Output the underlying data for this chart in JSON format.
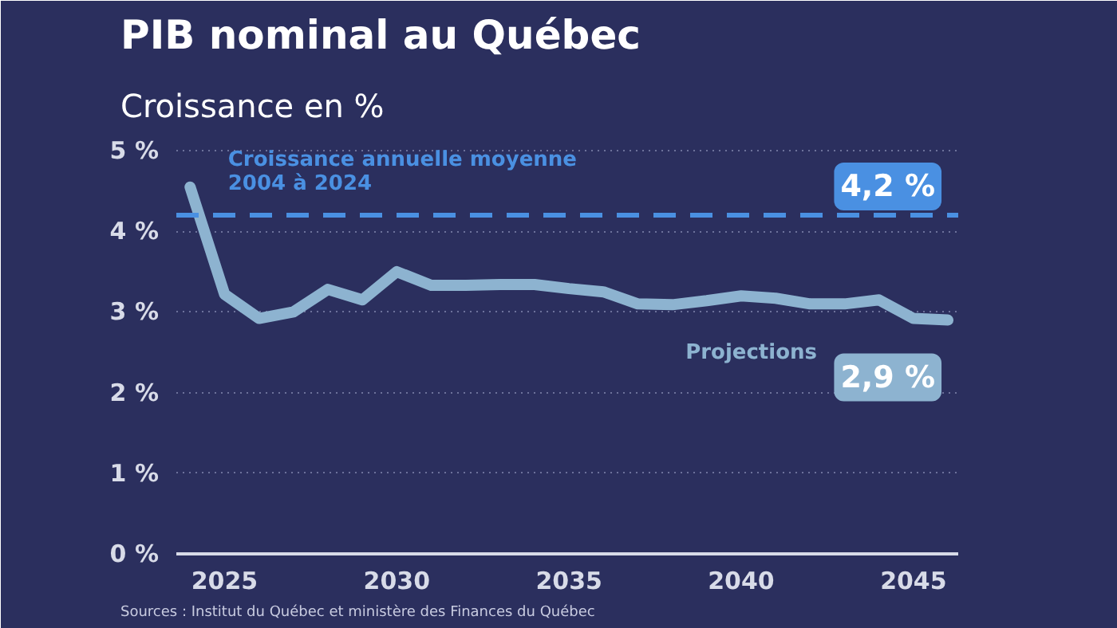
{
  "chart_data": {
    "type": "line",
    "title": "PIB nominal au Québec",
    "subtitle": "Croissance en %",
    "x": [
      2024,
      2025,
      2026,
      2027,
      2028,
      2029,
      2030,
      2031,
      2032,
      2033,
      2034,
      2035,
      2036,
      2037,
      2038,
      2039,
      2040,
      2041,
      2042,
      2043,
      2044,
      2045,
      2046
    ],
    "series": [
      {
        "name": "Projections",
        "color": "#8db3d0",
        "values": [
          4.55,
          3.22,
          2.92,
          3.0,
          3.28,
          3.15,
          3.5,
          3.33,
          3.33,
          3.34,
          3.34,
          3.29,
          3.25,
          3.1,
          3.09,
          3.14,
          3.2,
          3.17,
          3.1,
          3.1,
          3.15,
          2.92,
          2.9
        ]
      }
    ],
    "xlim": [
      2023.6,
      2046.3
    ],
    "ylim": [
      0,
      5.1
    ],
    "xticks": [
      2025,
      2030,
      2035,
      2040,
      2045
    ],
    "yticks": [
      {
        "value": 0,
        "label": "0 %"
      },
      {
        "value": 1,
        "label": "1 %"
      },
      {
        "value": 2,
        "label": "2 %"
      },
      {
        "value": 3,
        "label": "3 %"
      },
      {
        "value": 4,
        "label": "4 %"
      },
      {
        "value": 5,
        "label": "5 %"
      }
    ],
    "ref_lines": [
      {
        "axis": "y",
        "value": 4.2,
        "label": "Croissance annuelle moyenne\n2004 à 2024",
        "color": "#4a90e2",
        "line_style": "dashed"
      }
    ],
    "annotations": [
      {
        "text": "4,2 %",
        "x": 2046,
        "y": 4.2
      },
      {
        "text": "2,9 %",
        "x": 2046,
        "y": 2.9
      },
      "Sources : Institut du Québec et ministère des Finances du Québec"
    ],
    "grid": "y",
    "marker": "none",
    "line_style": "solid"
  }
}
